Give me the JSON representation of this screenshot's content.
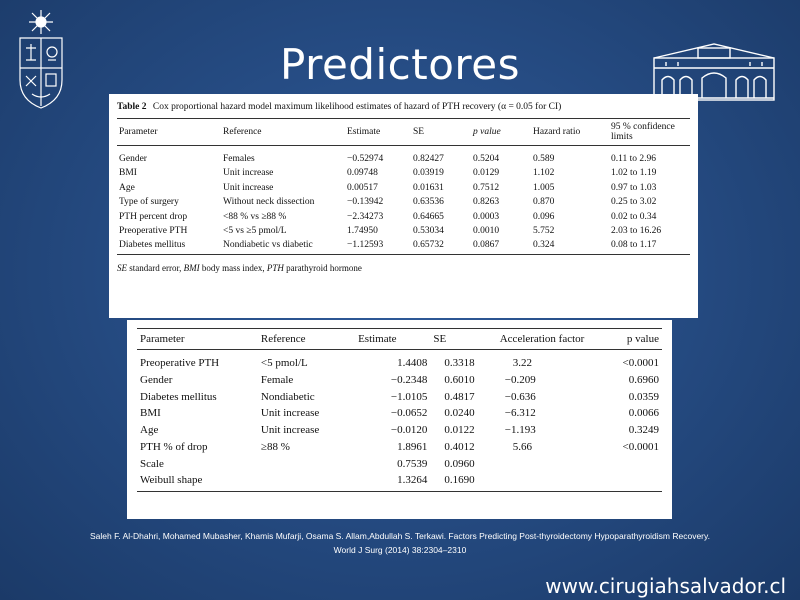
{
  "slide": {
    "title": "Predictores",
    "website": "www.cirugiahsalvador.cl",
    "citation_line1": "Saleh F. Al-Dhahri, Mohamed Mubasher,  Khamis Mufarji, Osama S. Allam,Abdullah S. Terkawi. Factors Predicting Post-thyroidectomy  Hypoparathyroidism  Recovery.",
    "citation_line2": "World J Surg (2014) 38:2304–2310"
  },
  "table1": {
    "caption_label": "Table 2",
    "caption_text": "Cox proportional hazard model maximum likelihood estimates of hazard of PTH recovery (α = 0.05 for CI)",
    "headers": [
      "Parameter",
      "Reference",
      "Estimate",
      "SE",
      "p value",
      "Hazard ratio",
      "95 % confidence limits"
    ],
    "rows": [
      [
        "Gender",
        "Females",
        "−0.52974",
        "0.82427",
        "0.5204",
        "0.589",
        "0.11 to 2.96"
      ],
      [
        "BMI",
        "Unit increase",
        "0.09748",
        "0.03919",
        "0.0129",
        "1.102",
        "1.02 to 1.19"
      ],
      [
        "Age",
        "Unit increase",
        "0.00517",
        "0.01631",
        "0.7512",
        "1.005",
        "0.97 to 1.03"
      ],
      [
        "Type of surgery",
        "Without neck dissection",
        "−0.13942",
        "0.63536",
        "0.8263",
        "0.870",
        "0.25 to 3.02"
      ],
      [
        "PTH percent drop",
        "<88 % vs ≥88 %",
        "−2.34273",
        "0.64665",
        "0.0003",
        "0.096",
        "0.02 to 0.34"
      ],
      [
        "Preoperative PTH",
        "<5 vs ≥5 pmol/L",
        "1.74950",
        "0.53034",
        "0.0010",
        "5.752",
        "2.03 to 16.26"
      ],
      [
        "Diabetes mellitus",
        "Nondiabetic vs diabetic",
        "−1.12593",
        "0.65732",
        "0.0867",
        "0.324",
        "0.08 to 1.17"
      ]
    ],
    "footnote_se": "SE",
    "footnote_se_text": " standard error, ",
    "footnote_bmi": "BMI",
    "footnote_bmi_text": " body mass index, ",
    "footnote_pth": "PTH",
    "footnote_pth_text": " parathyroid hormone"
  },
  "table2": {
    "headers": [
      "Parameter",
      "Reference",
      "Estimate",
      "SE",
      "Acceleration factor",
      "p value"
    ],
    "rows": [
      [
        "Preoperative PTH",
        "<5 pmol/L",
        "1.4408",
        "0.3318",
        "3.22",
        "<0.0001"
      ],
      [
        "Gender",
        "Female",
        "−0.2348",
        "0.6010",
        "−0.209",
        "0.6960"
      ],
      [
        "Diabetes mellitus",
        "Nondiabetic",
        "−1.0105",
        "0.4817",
        "−0.636",
        "0.0359"
      ],
      [
        "BMI",
        "Unit increase",
        "−0.0652",
        "0.0240",
        "−6.312",
        "0.0066"
      ],
      [
        "Age",
        "Unit increase",
        "−0.0120",
        "0.0122",
        "−1.193",
        "0.3249"
      ],
      [
        "PTH % of drop",
        "≥88 %",
        "1.8961",
        "0.4012",
        "5.66",
        "<0.0001"
      ],
      [
        "Scale",
        "",
        "0.7539",
        "0.0960",
        "",
        ""
      ],
      [
        "Weibull shape",
        "",
        "1.3264",
        "0.1690",
        "",
        ""
      ]
    ]
  },
  "logos": {
    "left": "university-crest-icon",
    "right": "hospital-building-icon"
  },
  "colors": {
    "background": "#2a5390",
    "text": "#ffffff"
  }
}
